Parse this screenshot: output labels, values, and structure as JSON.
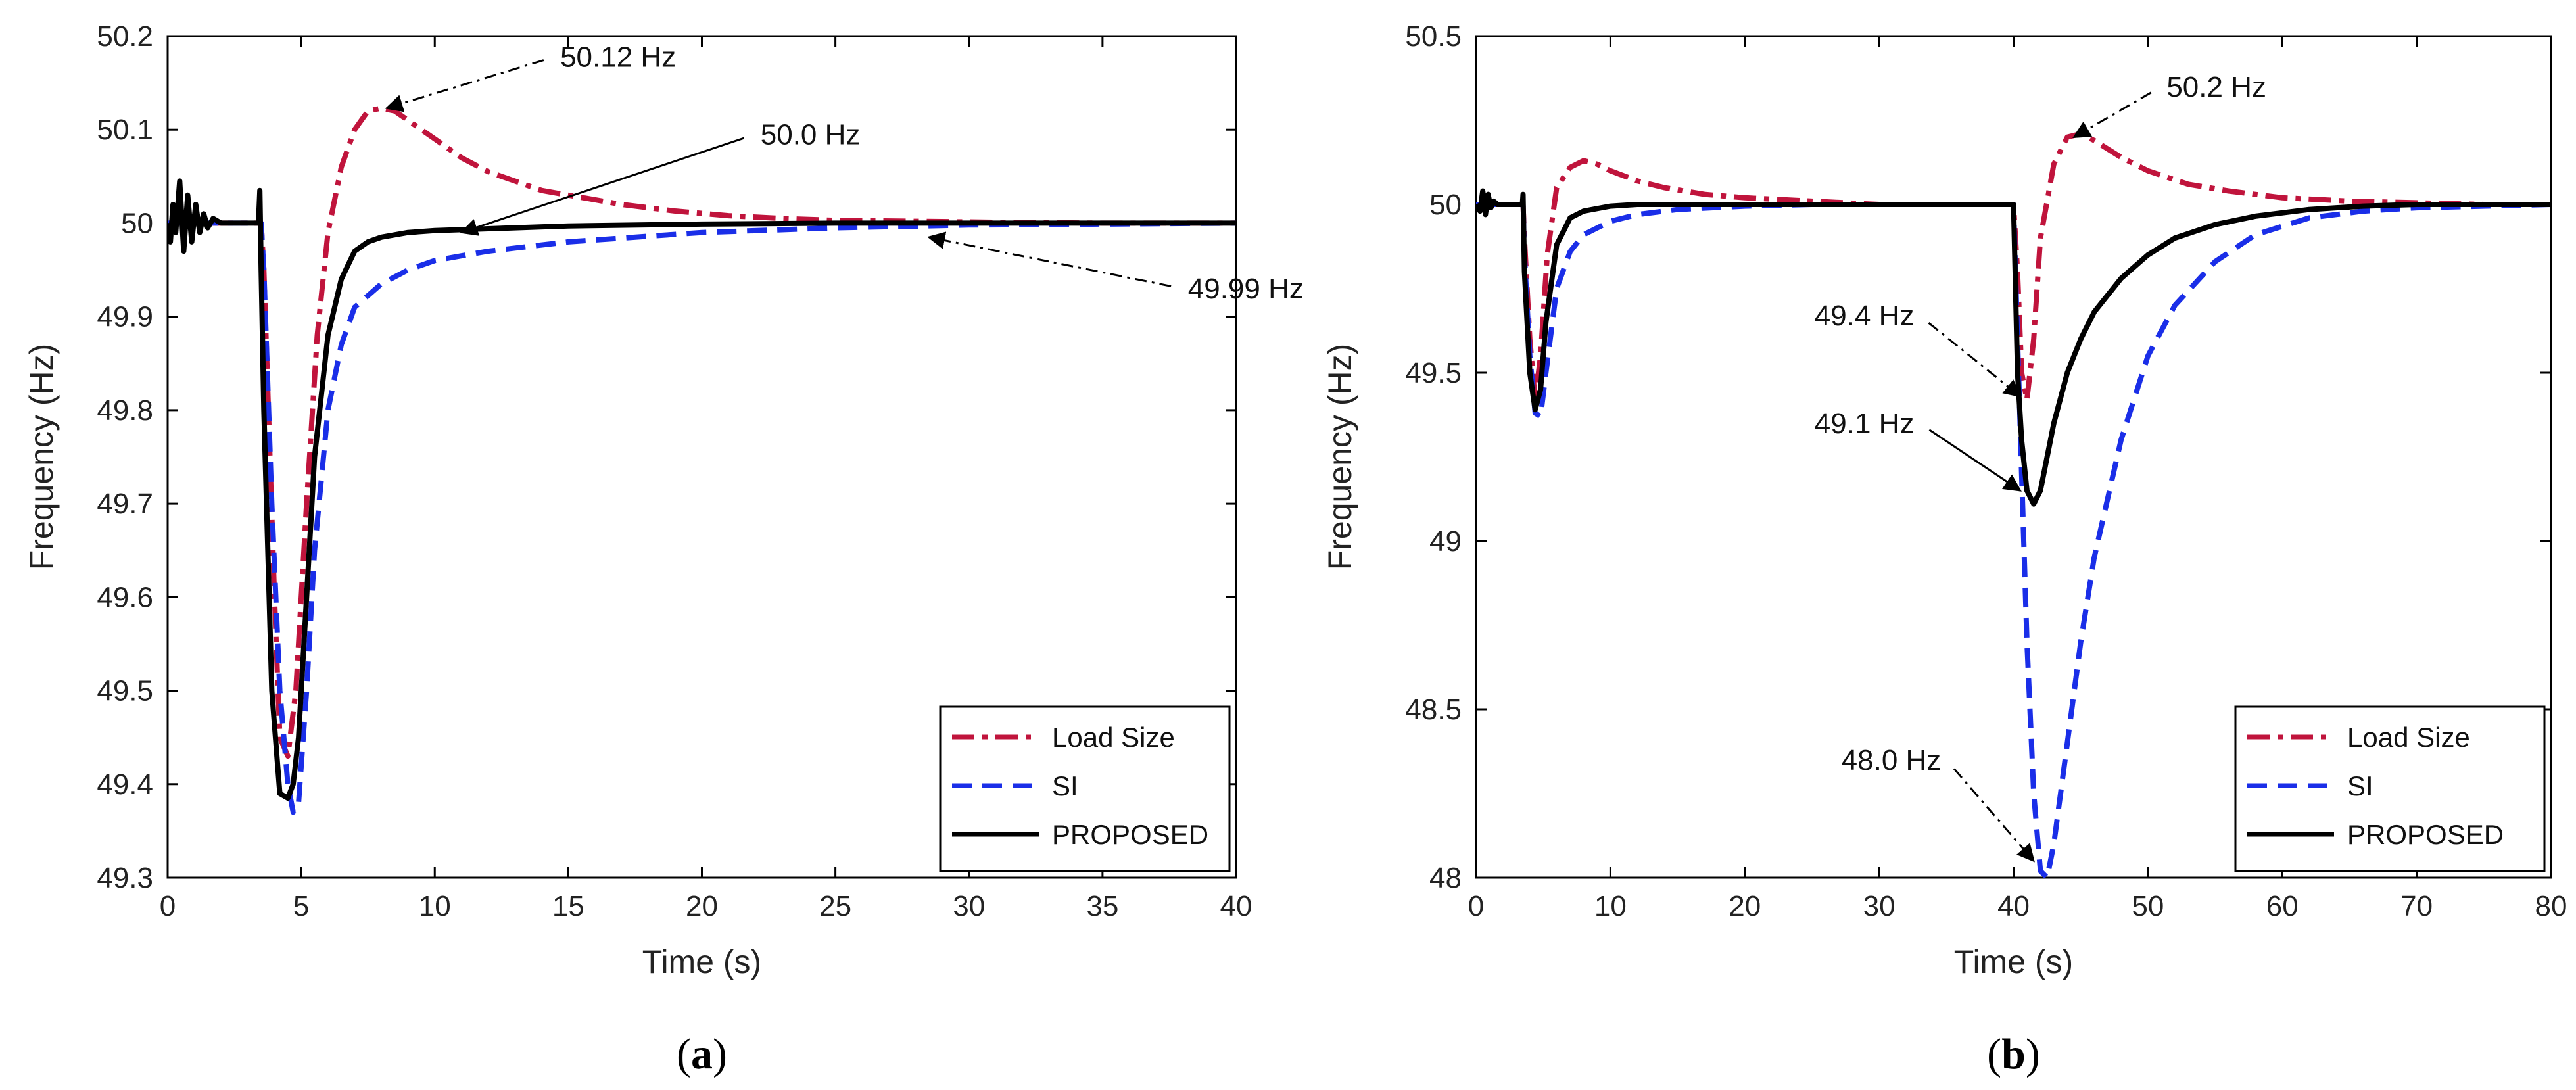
{
  "chart_data": [
    {
      "type": "line",
      "panel_label": "(a)",
      "xlabel": "Time (s)",
      "ylabel": "Frequency (Hz)",
      "xlim": [
        0,
        40
      ],
      "ylim": [
        49.3,
        50.2
      ],
      "xticks": [
        0,
        5,
        10,
        15,
        20,
        25,
        30,
        35,
        40
      ],
      "xtick_labels": [
        "0",
        "5",
        "10",
        "15",
        "20",
        "25",
        "30",
        "35",
        "40"
      ],
      "yticks": [
        49.3,
        49.4,
        49.5,
        49.6,
        49.7,
        49.8,
        49.9,
        50,
        50.1,
        50.2
      ],
      "ytick_labels": [
        "49.3",
        "49.4",
        "49.5",
        "49.6",
        "49.7",
        "49.8",
        "49.9",
        "50",
        "50.1",
        "50.2"
      ],
      "legend": {
        "position": "bottom-right",
        "entries": [
          "Load Size",
          "SI",
          "PROPOSED"
        ]
      },
      "series": [
        {
          "name": "Load Size",
          "color": "#c0143c",
          "dash": "dashdot",
          "x": [
            0,
            3.5,
            3.6,
            4.0,
            4.2,
            4.5,
            4.8,
            5.2,
            5.6,
            6.0,
            6.5,
            7.0,
            7.5,
            8.0,
            8.5,
            9.0,
            10,
            11,
            12,
            13,
            14,
            15,
            17,
            19,
            21,
            23,
            25,
            28,
            31,
            35,
            40
          ],
          "y": [
            50.0,
            50.0,
            49.95,
            49.6,
            49.45,
            49.43,
            49.5,
            49.7,
            49.88,
            49.99,
            50.06,
            50.1,
            50.12,
            50.123,
            50.12,
            50.11,
            50.09,
            50.07,
            50.055,
            50.045,
            50.035,
            50.03,
            50.02,
            50.013,
            50.008,
            50.005,
            50.003,
            50.002,
            50.001,
            50.0,
            50.0
          ]
        },
        {
          "name": "SI",
          "color": "#1a2ee8",
          "dash": "dashed",
          "x": [
            0,
            3.5,
            3.6,
            3.9,
            4.2,
            4.5,
            4.7,
            4.9,
            5.2,
            5.5,
            6.0,
            6.5,
            7.0,
            8,
            9,
            10,
            12,
            15,
            20,
            25,
            30,
            35,
            40
          ],
          "y": [
            50.0,
            50.0,
            49.95,
            49.7,
            49.5,
            49.4,
            49.37,
            49.38,
            49.5,
            49.65,
            49.8,
            49.87,
            49.91,
            49.935,
            49.95,
            49.96,
            49.97,
            49.98,
            49.99,
            49.995,
            49.998,
            49.999,
            50.0
          ]
        },
        {
          "name": "PROPOSED",
          "color": "#000000",
          "dash": "solid",
          "x": [
            0,
            0.1,
            0.2,
            0.3,
            0.45,
            0.6,
            0.75,
            0.9,
            1.05,
            1.2,
            1.35,
            1.5,
            1.7,
            2.0,
            2.5,
            3.0,
            3.4,
            3.45,
            3.5,
            3.6,
            3.9,
            4.2,
            4.5,
            4.7,
            4.9,
            5.2,
            5.5,
            6.0,
            6.5,
            7.0,
            7.5,
            8.0,
            9.0,
            10,
            12,
            15,
            20,
            25,
            30,
            35,
            40
          ],
          "y": [
            50.0,
            49.98,
            50.02,
            49.99,
            50.045,
            49.97,
            50.03,
            49.98,
            50.02,
            49.99,
            50.01,
            49.995,
            50.005,
            50.0,
            50.0,
            50.0,
            50.0,
            50.035,
            49.95,
            49.8,
            49.5,
            49.39,
            49.385,
            49.4,
            49.45,
            49.6,
            49.75,
            49.88,
            49.94,
            49.97,
            49.98,
            49.985,
            49.99,
            49.992,
            49.994,
            49.997,
            49.999,
            50.0,
            50.0,
            50.0,
            50.0
          ]
        }
      ],
      "annotations": [
        {
          "text": "50.12 Hz",
          "point": [
            8.2,
            50.123
          ],
          "anchor": [
            14.5,
            50.178
          ],
          "style": "dashdot"
        },
        {
          "text": "50.0 Hz",
          "point": [
            11,
            49.99
          ],
          "anchor": [
            22,
            50.095
          ],
          "style": "solid"
        },
        {
          "text": "49.99 Hz",
          "point": [
            28.5,
            49.985
          ],
          "anchor": [
            38,
            49.93
          ],
          "style": "dashdot"
        }
      ]
    },
    {
      "type": "line",
      "panel_label": "(b)",
      "xlabel": "Time (s)",
      "ylabel": "Frequency (Hz)",
      "xlim": [
        0,
        80
      ],
      "ylim": [
        48,
        50.5
      ],
      "xticks": [
        0,
        10,
        20,
        30,
        40,
        50,
        60,
        70,
        80
      ],
      "xtick_labels": [
        "0",
        "10",
        "20",
        "30",
        "40",
        "50",
        "60",
        "70",
        "80"
      ],
      "yticks": [
        48,
        48.5,
        49,
        49.5,
        50,
        50.5
      ],
      "ytick_labels": [
        "48",
        "48.5",
        "49",
        "49.5",
        "50",
        "50.5"
      ],
      "legend": {
        "position": "bottom-right",
        "entries": [
          "Load Size",
          "SI",
          "PROPOSED"
        ]
      },
      "series": [
        {
          "name": "Load Size",
          "color": "#c0143c",
          "dash": "dashdot",
          "x": [
            0,
            3.5,
            3.6,
            4.0,
            4.4,
            4.8,
            5.3,
            6.0,
            7.0,
            8.0,
            9.0,
            10,
            12,
            14,
            17,
            20,
            25,
            30,
            35,
            40,
            40.3,
            40.6,
            41,
            41.5,
            42,
            43,
            44,
            45,
            46,
            48,
            50,
            53,
            56,
            60,
            65,
            70,
            75,
            80
          ],
          "y": [
            50.0,
            50.0,
            49.9,
            49.6,
            49.42,
            49.55,
            49.85,
            50.05,
            50.11,
            50.13,
            50.12,
            50.1,
            50.07,
            50.05,
            50.03,
            50.02,
            50.01,
            50.0,
            50.0,
            50.0,
            49.8,
            49.5,
            49.42,
            49.6,
            49.9,
            50.12,
            50.2,
            50.21,
            50.19,
            50.14,
            50.1,
            50.06,
            50.04,
            50.02,
            50.01,
            50.005,
            50.0,
            50.0
          ]
        },
        {
          "name": "SI",
          "color": "#1a2ee8",
          "dash": "dashed",
          "x": [
            0,
            3.5,
            3.6,
            4.0,
            4.4,
            4.8,
            5.2,
            6.0,
            7.0,
            8.0,
            10,
            12,
            15,
            20,
            25,
            30,
            35,
            40,
            40.3,
            40.6,
            41,
            41.5,
            42,
            42.5,
            43,
            44,
            45,
            46,
            48,
            50,
            52,
            55,
            58,
            62,
            66,
            70,
            75,
            80
          ],
          "y": [
            50.0,
            50.0,
            49.85,
            49.55,
            49.38,
            49.37,
            49.5,
            49.75,
            49.86,
            49.91,
            49.95,
            49.97,
            49.985,
            49.995,
            50.0,
            50.0,
            50.0,
            50.0,
            49.6,
            49.2,
            48.7,
            48.25,
            48.02,
            48.0,
            48.1,
            48.4,
            48.7,
            48.95,
            49.3,
            49.55,
            49.7,
            49.83,
            49.91,
            49.96,
            49.98,
            49.99,
            49.995,
            50.0
          ]
        },
        {
          "name": "PROPOSED",
          "color": "#000000",
          "dash": "solid",
          "x": [
            0,
            0.3,
            0.5,
            0.7,
            0.9,
            1.1,
            1.3,
            1.6,
            2.0,
            3.0,
            3.45,
            3.5,
            3.6,
            4.0,
            4.4,
            4.8,
            5.2,
            6.0,
            7.0,
            8.0,
            10,
            12,
            15,
            20,
            25,
            30,
            35,
            40,
            40.3,
            40.6,
            41,
            41.5,
            42,
            43,
            44,
            45,
            46,
            48,
            50,
            52,
            55,
            58,
            62,
            66,
            70,
            75,
            80
          ],
          "y": [
            50.0,
            49.98,
            50.04,
            49.97,
            50.03,
            49.99,
            50.01,
            50.0,
            50.0,
            50.0,
            50.0,
            50.03,
            49.8,
            49.5,
            49.39,
            49.45,
            49.65,
            49.88,
            49.96,
            49.98,
            49.995,
            50.0,
            50.0,
            50.0,
            50.0,
            50.0,
            50.0,
            50.0,
            49.5,
            49.3,
            49.15,
            49.11,
            49.15,
            49.35,
            49.5,
            49.6,
            49.68,
            49.78,
            49.85,
            49.9,
            49.94,
            49.965,
            49.985,
            49.995,
            50.0,
            50.0,
            50.0
          ]
        }
      ],
      "annotations": [
        {
          "text": "50.2 Hz",
          "point": [
            44.5,
            50.2
          ],
          "anchor": [
            51,
            50.35
          ],
          "style": "dashdot"
        },
        {
          "text": "49.4 Hz",
          "point": [
            40.5,
            49.43
          ],
          "anchor": [
            33,
            49.67
          ],
          "style": "dashdot"
        },
        {
          "text": "49.1 Hz",
          "point": [
            40.5,
            49.15
          ],
          "anchor": [
            33,
            49.35
          ],
          "style": "solid"
        },
        {
          "text": "48.0 Hz",
          "point": [
            41.5,
            48.05
          ],
          "anchor": [
            35,
            48.35
          ],
          "style": "dashdot"
        }
      ]
    }
  ]
}
